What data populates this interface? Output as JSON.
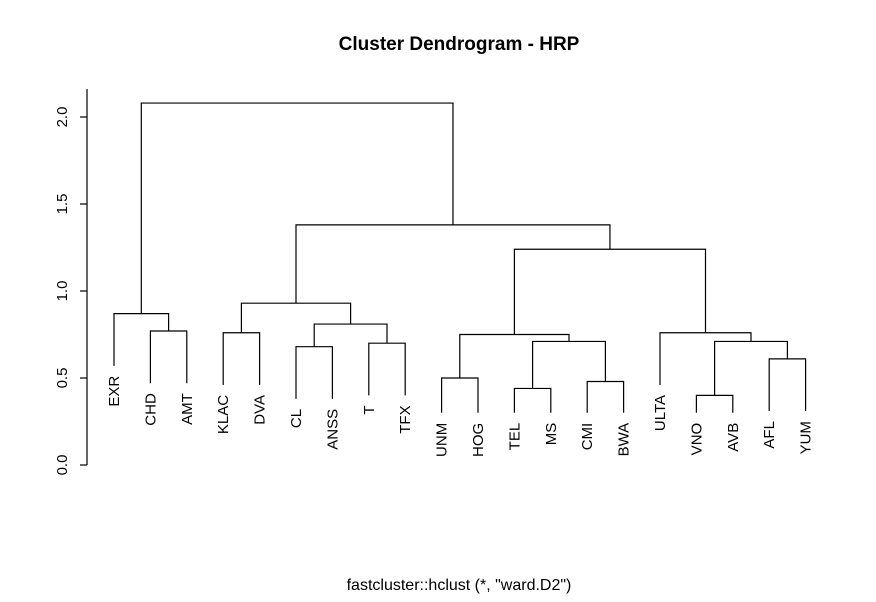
{
  "chart_data": {
    "type": "dendrogram",
    "title": "Cluster Dendrogram - HRP",
    "xlabel": "fastcluster::hclust (*, \"ward.D2\")",
    "ylabel": "",
    "ylim": [
      0,
      2.1
    ],
    "yticks": [
      "0.0",
      "0.5",
      "1.0",
      "1.5",
      "2.0"
    ],
    "yticks_values": [
      0,
      0.5,
      1.0,
      1.5,
      2.0
    ],
    "leaves": [
      "EXR",
      "CHD",
      "AMT",
      "KLAC",
      "DVA",
      "CL",
      "ANSS",
      "T",
      "TFX",
      "UNM",
      "HOG",
      "TEL",
      "MS",
      "CMI",
      "BWA",
      "ULTA",
      "VNO",
      "AVB",
      "AFL",
      "YUM"
    ],
    "merges": [
      {
        "a": "CHD",
        "b": "AMT",
        "height": 0.77
      },
      {
        "a": "EXR",
        "b": 0,
        "height": 0.87
      },
      {
        "a": "KLAC",
        "b": "DVA",
        "height": 0.76
      },
      {
        "a": "CL",
        "b": "ANSS",
        "height": 0.68
      },
      {
        "a": "T",
        "b": "TFX",
        "height": 0.7
      },
      {
        "a": 3,
        "b": 4,
        "height": 0.81
      },
      {
        "a": 2,
        "b": 5,
        "height": 0.93
      },
      {
        "a": "UNM",
        "b": "HOG",
        "height": 0.5
      },
      {
        "a": "TEL",
        "b": "MS",
        "height": 0.44
      },
      {
        "a": "CMI",
        "b": "BWA",
        "height": 0.48
      },
      {
        "a": 8,
        "b": 9,
        "height": 0.71
      },
      {
        "a": 7,
        "b": 10,
        "height": 0.75
      },
      {
        "a": "VNO",
        "b": "AVB",
        "height": 0.4
      },
      {
        "a": "AFL",
        "b": "YUM",
        "height": 0.61
      },
      {
        "a": 12,
        "b": 13,
        "height": 0.71
      },
      {
        "a": "ULTA",
        "b": 14,
        "height": 0.76
      },
      {
        "a": 11,
        "b": 15,
        "height": 1.24
      },
      {
        "a": 6,
        "b": 16,
        "height": 1.38
      },
      {
        "a": 1,
        "b": 17,
        "height": 2.08
      }
    ]
  }
}
